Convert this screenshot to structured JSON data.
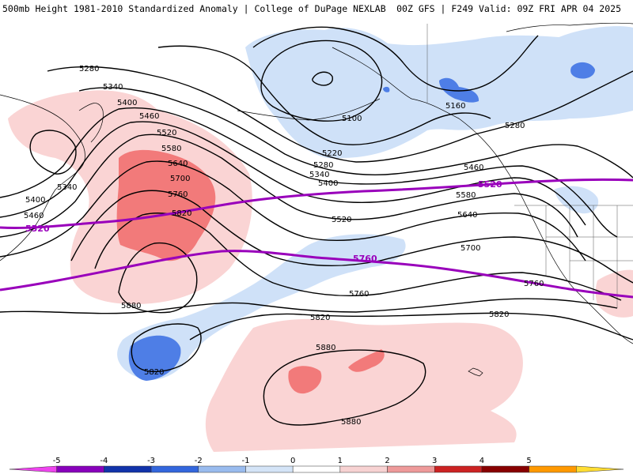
{
  "header": {
    "title_left": "500mb Height 1981-2010 Standardized Anomaly | College of DuPage NEXLAB",
    "title_right": "00Z GFS | F249 Valid: 09Z FRI APR 04 2025"
  },
  "contour_labels": {
    "c5100": "5100",
    "c5160": "5160",
    "c5220": "5220",
    "c5280": "5280",
    "c5340": "5340",
    "c5400": "5400",
    "c5460": "5460",
    "c5520": "5520",
    "c5580": "5580",
    "c5640": "5640",
    "c5700": "5700",
    "c5760": "5760",
    "c5820": "5820",
    "c5880": "5880"
  },
  "climatology_labels": {
    "c5520": "5520",
    "c5760": "5760"
  },
  "colorbar": {
    "ticks": [
      "-5",
      "-4",
      "-3",
      "-2",
      "-1",
      "0",
      "1",
      "2",
      "3",
      "4",
      "5"
    ],
    "colors": [
      "#ee44ee",
      "#8800bb",
      "#1133aa",
      "#3366dd",
      "#99bbee",
      "#d4e4f7",
      "#ffffff",
      "#f7d2d2",
      "#ee9a9a",
      "#cc2222",
      "#880000",
      "#ff9900",
      "#ffdd33"
    ]
  },
  "colors": {
    "neg1": "#cfe1f8",
    "neg2": "#4e7ee6",
    "pos1": "#fad4d4",
    "pos2": "#f27a7a",
    "contour": "#000000",
    "climatology": "#9900bb"
  }
}
